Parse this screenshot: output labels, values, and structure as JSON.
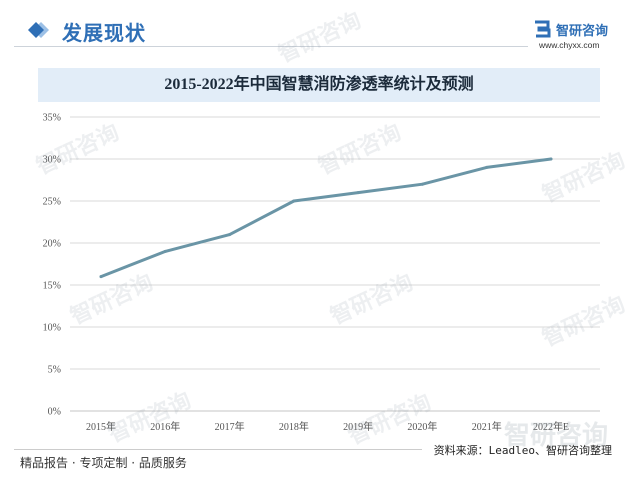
{
  "header": {
    "title": "发展现状",
    "accent_color": "#2f6fb6",
    "icon": "diamond-icon"
  },
  "logo": {
    "name": "智研咨询",
    "url": "www.chyxx.com",
    "icon": "zhiyan-logo-icon"
  },
  "watermark": "智研咨询",
  "chart_data": {
    "type": "line",
    "title": "2015-2022年中国智慧消防渗透率统计及预测",
    "categories": [
      "2015年",
      "2016年",
      "2017年",
      "2018年",
      "2019年",
      "2020年",
      "2021年",
      "2022年E"
    ],
    "values": [
      16,
      19,
      21,
      25,
      26,
      27,
      29,
      30
    ],
    "ylim": [
      0,
      35
    ],
    "yticks": [
      0,
      5,
      10,
      15,
      20,
      25,
      30,
      35
    ],
    "ytick_labels": [
      "0%",
      "5%",
      "10%",
      "15%",
      "20%",
      "25%",
      "30%",
      "35%"
    ],
    "grid": true,
    "legend": "none",
    "line_color": "#6a95a6"
  },
  "footer": {
    "slogan": "精品报告 · 专项定制 · 品质服务",
    "source": "资料来源：Leadleo、智研咨询整理"
  }
}
